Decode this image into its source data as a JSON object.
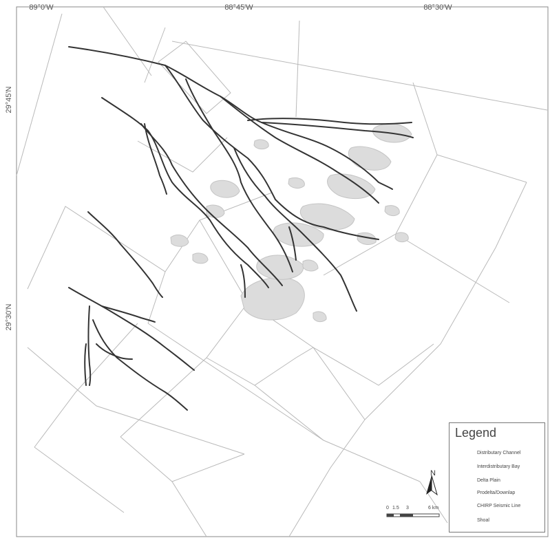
{
  "map": {
    "graticule": {
      "top_labels": [
        "89°0'W",
        "88°45'W",
        "88°30'W"
      ],
      "left_labels": [
        "29°45'N",
        "29°30'N"
      ]
    }
  },
  "legend": {
    "title": "Legend",
    "items": [
      {
        "label": "Distributary Channel",
        "symbol": "thin-wavy-line"
      },
      {
        "label": "Interdistributary Bay",
        "symbol": "dashed-line"
      },
      {
        "label": "Delta Plain",
        "symbol": "thick-line"
      },
      {
        "label": "Prodelta/Downlap",
        "symbol": "thick-dashed-line"
      },
      {
        "label": "CHIRP Seismic Line",
        "symbol": "thin-gray-line"
      },
      {
        "label": "Shoal",
        "symbol": "gray-blob"
      }
    ]
  },
  "north_arrow": {
    "label": "N"
  },
  "scale_bar": {
    "labels": [
      "0",
      "1.5",
      "3",
      "6 km"
    ]
  },
  "colors": {
    "channel": "#333333",
    "survey_line": "#b9b9b9",
    "shoal_fill": "#dcdcdc",
    "shoal_stroke": "#c4c4c4"
  }
}
